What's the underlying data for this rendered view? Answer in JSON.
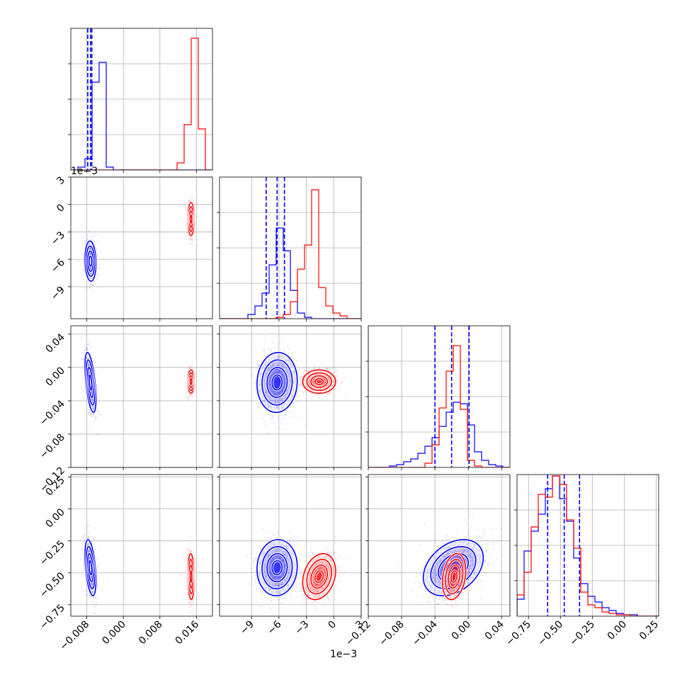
{
  "chart_data": {
    "type": "corner",
    "grid": true,
    "colors": {
      "blue": "#0000ff",
      "red": "#ff0000",
      "grid": "#b0b0b0"
    },
    "params": [
      {
        "range": [
          -0.0115,
          0.0195
        ],
        "ticks": [
          -0.008,
          0.0,
          0.008,
          0.016
        ],
        "tick_labels": [
          "−0.008",
          "0.000",
          "0.008",
          "0.016"
        ],
        "offset_label": ""
      },
      {
        "range": [
          -12.5,
          3.0
        ],
        "ticks": [
          -9,
          -6,
          -3,
          0,
          3
        ],
        "tick_labels": [
          "−9",
          "−6",
          "−3",
          "0",
          "3"
        ],
        "offset_label": "1e−3"
      },
      {
        "range": [
          -0.12,
          0.05
        ],
        "ticks": [
          -0.12,
          -0.08,
          -0.04,
          0.0,
          0.04
        ],
        "tick_labels": [
          "−0.12",
          "−0.08",
          "−0.04",
          "0.00",
          "0.04"
        ],
        "offset_label": ""
      },
      {
        "range": [
          -0.84,
          0.27
        ],
        "ticks": [
          -0.75,
          -0.5,
          -0.25,
          0.0,
          0.25
        ],
        "tick_labels": [
          "−0.75",
          "−0.50",
          "−0.25",
          "0.00",
          "0.25"
        ],
        "offset_label": ""
      }
    ],
    "series": [
      {
        "color": "blue",
        "mean": [
          -0.0072,
          -6.2,
          -0.018,
          -0.46
        ],
        "std": [
          0.0006,
          1.1,
          0.018,
          0.11
        ],
        "quantiles": [
          [
            -0.0078,
            -0.0072,
            -0.0069
          ],
          [
            -7.4,
            -6.2,
            -5.4
          ],
          [
            -0.04,
            -0.02,
            0.001
          ],
          [
            -0.6,
            -0.47,
            -0.35
          ]
        ],
        "hist": [
          [
            0,
            0.02,
            0.08,
            0.62,
            0.76,
            0.02,
            0,
            0,
            0,
            0,
            0,
            0,
            0,
            0,
            0,
            0,
            0,
            0,
            0,
            0
          ],
          [
            0,
            0,
            0,
            0,
            0.03,
            0.09,
            0.18,
            0.38,
            0.64,
            0.48,
            0.2,
            0.04,
            0.01,
            0,
            0,
            0,
            0,
            0,
            0,
            0
          ],
          [
            0,
            0,
            0,
            0.01,
            0.02,
            0.04,
            0.06,
            0.1,
            0.15,
            0.21,
            0.29,
            0.39,
            0.46,
            0.45,
            0.3,
            0.11,
            0.05,
            0.02,
            0.01,
            0
          ],
          [
            0.12,
            0.46,
            0.6,
            0.72,
            0.9,
            0.99,
            0.83,
            0.67,
            0.41,
            0.23,
            0.14,
            0.1,
            0.06,
            0.04,
            0.02,
            0.01,
            0.01,
            0,
            0,
            0
          ]
        ]
      },
      {
        "color": "red",
        "mean": [
          0.0148,
          -1.6,
          -0.017,
          -0.53
        ],
        "std": [
          0.00035,
          0.9,
          0.007,
          0.09
        ],
        "quantiles": null,
        "hist": [
          [
            0,
            0,
            0,
            0,
            0,
            0,
            0,
            0,
            0,
            0,
            0,
            0,
            0,
            0,
            0,
            0.05,
            0.32,
            0.93,
            0.29,
            0
          ],
          [
            0,
            0,
            0,
            0,
            0,
            0,
            0,
            0,
            0.01,
            0.03,
            0.12,
            0.35,
            0.52,
            0.91,
            0.22,
            0.09,
            0.04,
            0.02,
            0,
            0
          ],
          [
            0,
            0,
            0,
            0,
            0,
            0,
            0,
            0,
            0.03,
            0.16,
            0.42,
            0.68,
            0.86,
            0.41,
            0.05,
            0.01,
            0,
            0,
            0,
            0
          ],
          [
            0.15,
            0.31,
            0.63,
            0.86,
            0.84,
            0.99,
            0.93,
            0.68,
            0.48,
            0.17,
            0.08,
            0.06,
            0.03,
            0.02,
            0.01,
            0.01,
            0,
            0,
            0,
            0
          ]
        ]
      }
    ]
  }
}
